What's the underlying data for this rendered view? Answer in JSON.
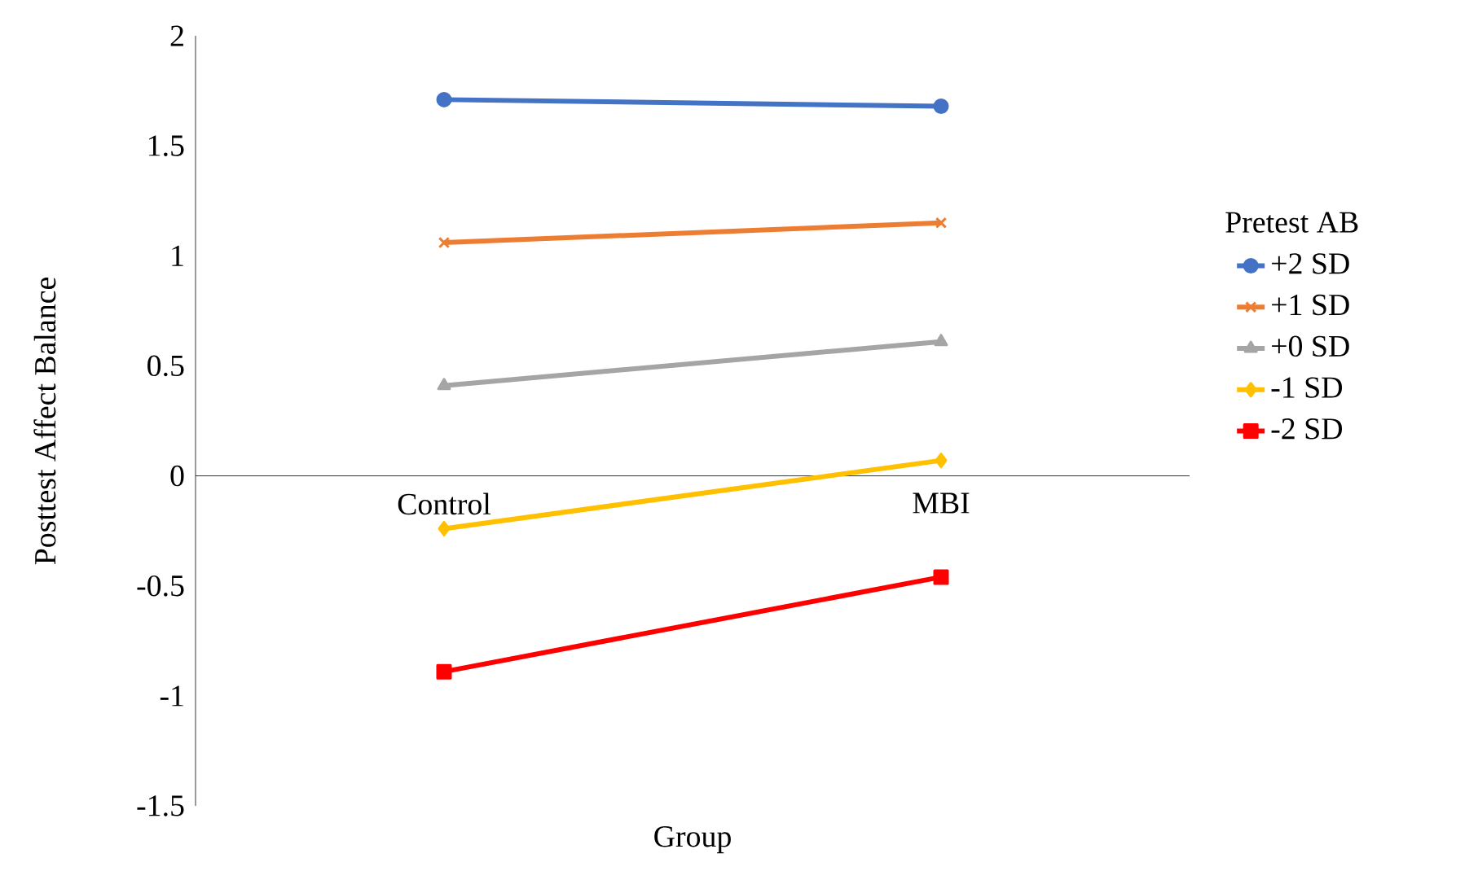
{
  "chart_data": {
    "type": "line",
    "xlabel": "Group",
    "ylabel": "Posttest Affect Balance",
    "legend_title": "Pretest AB",
    "categories": [
      "Control",
      "MBI"
    ],
    "ylim": [
      -1.5,
      2
    ],
    "yticks": [
      {
        "value": -1.5,
        "label": "-1.5"
      },
      {
        "value": -1,
        "label": "-1"
      },
      {
        "value": -0.5,
        "label": "-0.5"
      },
      {
        "value": 0,
        "label": "0"
      },
      {
        "value": 0.5,
        "label": "0.5"
      },
      {
        "value": 1,
        "label": "1"
      },
      {
        "value": 1.5,
        "label": "1.5"
      },
      {
        "value": 2,
        "label": "2"
      }
    ],
    "grid": false,
    "legend": "right",
    "line_style": "solid",
    "series": [
      {
        "name": "+2 SD",
        "color": "#4472c4",
        "marker": "circle",
        "values": [
          1.71,
          1.68
        ]
      },
      {
        "name": "+1 SD",
        "color": "#ed7d31",
        "marker": "cross",
        "values": [
          1.06,
          1.15
        ]
      },
      {
        "name": "+0 SD",
        "color": "#a5a5a5",
        "marker": "triangle",
        "values": [
          0.41,
          0.61
        ]
      },
      {
        "name": "-1 SD",
        "color": "#ffc000",
        "marker": "diamond",
        "values": [
          -0.24,
          0.07
        ]
      },
      {
        "name": "-2 SD",
        "color": "#ff0000",
        "marker": "square",
        "values": [
          -0.89,
          -0.46
        ]
      }
    ]
  }
}
